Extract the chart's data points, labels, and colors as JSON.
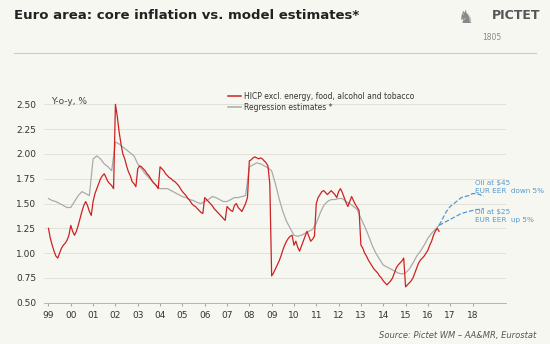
{
  "title": "Euro area: core inflation vs. model estimates*",
  "ylabel": "Y-o-y, %",
  "source": "Source: Pictet WM – AA&MR, Eurostat",
  "legend_red": "HICP excl. energy, food, alcohol and tobacco",
  "legend_gray": "Regression estimates *",
  "annotation_upper": "Oil at $45\nEUR EER  down 5%",
  "annotation_lower": "Oil at $25\nEUR EER  up 5%",
  "ylim": [
    0.5,
    2.65
  ],
  "yticks": [
    0.5,
    0.75,
    1.0,
    1.25,
    1.5,
    1.75,
    2.0,
    2.25,
    2.5
  ],
  "background_color": "#f7f7f2",
  "red_color": "#cc2222",
  "gray_color": "#aaaaaa",
  "blue_color": "#5599cc",
  "title_color": "#222222",
  "text_color": "#444444",
  "hicp_x": [
    1999.0,
    1999.083,
    1999.167,
    1999.25,
    1999.333,
    1999.417,
    1999.5,
    1999.583,
    1999.667,
    1999.75,
    1999.833,
    1999.917,
    2000.0,
    2000.083,
    2000.167,
    2000.25,
    2000.333,
    2000.417,
    2000.5,
    2000.583,
    2000.667,
    2000.75,
    2000.833,
    2000.917,
    2001.0,
    2001.083,
    2001.167,
    2001.25,
    2001.333,
    2001.417,
    2001.5,
    2001.583,
    2001.667,
    2001.75,
    2001.833,
    2001.917,
    2002.0,
    2002.083,
    2002.167,
    2002.25,
    2002.333,
    2002.417,
    2002.5,
    2002.583,
    2002.667,
    2002.75,
    2002.833,
    2002.917,
    2003.0,
    2003.083,
    2003.167,
    2003.25,
    2003.333,
    2003.417,
    2003.5,
    2003.583,
    2003.667,
    2003.75,
    2003.833,
    2003.917,
    2004.0,
    2004.083,
    2004.167,
    2004.25,
    2004.333,
    2004.417,
    2004.5,
    2004.583,
    2004.667,
    2004.75,
    2004.833,
    2004.917,
    2005.0,
    2005.083,
    2005.167,
    2005.25,
    2005.333,
    2005.417,
    2005.5,
    2005.583,
    2005.667,
    2005.75,
    2005.833,
    2005.917,
    2006.0,
    2006.083,
    2006.167,
    2006.25,
    2006.333,
    2006.417,
    2006.5,
    2006.583,
    2006.667,
    2006.75,
    2006.833,
    2006.917,
    2007.0,
    2007.083,
    2007.167,
    2007.25,
    2007.333,
    2007.417,
    2007.5,
    2007.583,
    2007.667,
    2007.75,
    2007.833,
    2007.917,
    2008.0,
    2008.083,
    2008.167,
    2008.25,
    2008.333,
    2008.417,
    2008.5,
    2008.583,
    2008.667,
    2008.75,
    2008.833,
    2008.917,
    2009.0,
    2009.083,
    2009.167,
    2009.25,
    2009.333,
    2009.417,
    2009.5,
    2009.583,
    2009.667,
    2009.75,
    2009.833,
    2009.917,
    2010.0,
    2010.083,
    2010.167,
    2010.25,
    2010.333,
    2010.417,
    2010.5,
    2010.583,
    2010.667,
    2010.75,
    2010.833,
    2010.917,
    2011.0,
    2011.083,
    2011.167,
    2011.25,
    2011.333,
    2011.417,
    2011.5,
    2011.583,
    2011.667,
    2011.75,
    2011.833,
    2011.917,
    2012.0,
    2012.083,
    2012.167,
    2012.25,
    2012.333,
    2012.417,
    2012.5,
    2012.583,
    2012.667,
    2012.75,
    2012.833,
    2012.917,
    2013.0,
    2013.083,
    2013.167,
    2013.25,
    2013.333,
    2013.417,
    2013.5,
    2013.583,
    2013.667,
    2013.75,
    2013.833,
    2013.917,
    2014.0,
    2014.083,
    2014.167,
    2014.25,
    2014.333,
    2014.417,
    2014.5,
    2014.583,
    2014.667,
    2014.75,
    2014.833,
    2014.917,
    2015.0,
    2015.083,
    2015.167,
    2015.25,
    2015.333,
    2015.417,
    2015.5,
    2015.583,
    2015.667,
    2015.75,
    2015.833,
    2015.917,
    2016.0,
    2016.083,
    2016.167,
    2016.25,
    2016.333,
    2016.417,
    2016.5
  ],
  "hicp_y": [
    1.25,
    1.15,
    1.08,
    1.02,
    0.97,
    0.95,
    1.0,
    1.05,
    1.08,
    1.1,
    1.13,
    1.18,
    1.28,
    1.22,
    1.18,
    1.22,
    1.28,
    1.35,
    1.42,
    1.48,
    1.52,
    1.48,
    1.42,
    1.38,
    1.52,
    1.6,
    1.65,
    1.7,
    1.75,
    1.78,
    1.8,
    1.76,
    1.72,
    1.7,
    1.68,
    1.65,
    2.5,
    2.38,
    2.22,
    2.1,
    2.0,
    1.95,
    1.88,
    1.82,
    1.78,
    1.72,
    1.7,
    1.67,
    1.85,
    1.88,
    1.87,
    1.85,
    1.83,
    1.8,
    1.78,
    1.75,
    1.72,
    1.7,
    1.68,
    1.65,
    1.87,
    1.85,
    1.83,
    1.8,
    1.78,
    1.76,
    1.75,
    1.73,
    1.72,
    1.7,
    1.68,
    1.65,
    1.62,
    1.6,
    1.58,
    1.55,
    1.53,
    1.5,
    1.48,
    1.47,
    1.45,
    1.43,
    1.41,
    1.4,
    1.56,
    1.54,
    1.52,
    1.5,
    1.48,
    1.45,
    1.43,
    1.41,
    1.39,
    1.37,
    1.35,
    1.33,
    1.47,
    1.45,
    1.43,
    1.42,
    1.48,
    1.5,
    1.46,
    1.44,
    1.42,
    1.46,
    1.5,
    1.56,
    1.93,
    1.94,
    1.96,
    1.97,
    1.96,
    1.95,
    1.96,
    1.95,
    1.93,
    1.91,
    1.88,
    1.7,
    0.77,
    0.8,
    0.84,
    0.88,
    0.92,
    0.97,
    1.03,
    1.08,
    1.12,
    1.15,
    1.17,
    1.18,
    1.08,
    1.12,
    1.06,
    1.02,
    1.07,
    1.12,
    1.17,
    1.22,
    1.17,
    1.12,
    1.14,
    1.17,
    1.5,
    1.56,
    1.59,
    1.62,
    1.63,
    1.61,
    1.59,
    1.61,
    1.63,
    1.61,
    1.59,
    1.56,
    1.62,
    1.65,
    1.61,
    1.56,
    1.51,
    1.47,
    1.52,
    1.57,
    1.53,
    1.49,
    1.46,
    1.43,
    1.08,
    1.05,
    1.0,
    0.97,
    0.93,
    0.9,
    0.87,
    0.84,
    0.82,
    0.8,
    0.77,
    0.75,
    0.72,
    0.7,
    0.68,
    0.7,
    0.72,
    0.75,
    0.8,
    0.85,
    0.88,
    0.9,
    0.92,
    0.95,
    0.66,
    0.68,
    0.7,
    0.72,
    0.75,
    0.8,
    0.85,
    0.9,
    0.93,
    0.95,
    0.97,
    1.0,
    1.03,
    1.08,
    1.12,
    1.18,
    1.22,
    1.25,
    1.22
  ],
  "reg_x": [
    1999.0,
    1999.167,
    1999.333,
    1999.5,
    1999.667,
    1999.833,
    2000.0,
    2000.167,
    2000.333,
    2000.5,
    2000.667,
    2000.833,
    2001.0,
    2001.167,
    2001.333,
    2001.5,
    2001.667,
    2001.833,
    2002.0,
    2002.167,
    2002.333,
    2002.5,
    2002.667,
    2002.833,
    2003.0,
    2003.167,
    2003.333,
    2003.5,
    2003.667,
    2003.833,
    2004.0,
    2004.167,
    2004.333,
    2004.5,
    2004.667,
    2004.833,
    2005.0,
    2005.167,
    2005.333,
    2005.5,
    2005.667,
    2005.833,
    2006.0,
    2006.167,
    2006.333,
    2006.5,
    2006.667,
    2006.833,
    2007.0,
    2007.167,
    2007.333,
    2007.5,
    2007.667,
    2007.833,
    2008.0,
    2008.167,
    2008.333,
    2008.5,
    2008.667,
    2008.833,
    2009.0,
    2009.167,
    2009.333,
    2009.5,
    2009.667,
    2009.833,
    2010.0,
    2010.167,
    2010.333,
    2010.5,
    2010.667,
    2010.833,
    2011.0,
    2011.167,
    2011.333,
    2011.5,
    2011.667,
    2011.833,
    2012.0,
    2012.167,
    2012.333,
    2012.5,
    2012.667,
    2012.833,
    2013.0,
    2013.167,
    2013.333,
    2013.5,
    2013.667,
    2013.833,
    2014.0,
    2014.167,
    2014.333,
    2014.5,
    2014.667,
    2014.833,
    2015.0,
    2015.167,
    2015.333,
    2015.5,
    2015.667,
    2015.833,
    2016.0,
    2016.167,
    2016.333,
    2016.5
  ],
  "reg_y": [
    1.55,
    1.53,
    1.52,
    1.5,
    1.48,
    1.46,
    1.46,
    1.52,
    1.58,
    1.62,
    1.6,
    1.58,
    1.95,
    1.98,
    1.95,
    1.9,
    1.87,
    1.83,
    2.12,
    2.1,
    2.07,
    2.04,
    2.01,
    1.98,
    1.9,
    1.85,
    1.8,
    1.76,
    1.72,
    1.68,
    1.65,
    1.65,
    1.65,
    1.63,
    1.61,
    1.59,
    1.57,
    1.56,
    1.54,
    1.53,
    1.51,
    1.5,
    1.52,
    1.54,
    1.57,
    1.56,
    1.54,
    1.52,
    1.52,
    1.54,
    1.56,
    1.56,
    1.57,
    1.58,
    1.87,
    1.89,
    1.91,
    1.9,
    1.88,
    1.86,
    1.83,
    1.7,
    1.55,
    1.42,
    1.32,
    1.25,
    1.18,
    1.17,
    1.18,
    1.2,
    1.22,
    1.24,
    1.3,
    1.4,
    1.48,
    1.52,
    1.54,
    1.54,
    1.55,
    1.55,
    1.52,
    1.5,
    1.47,
    1.44,
    1.35,
    1.27,
    1.18,
    1.08,
    1.0,
    0.94,
    0.88,
    0.86,
    0.84,
    0.82,
    0.8,
    0.79,
    0.8,
    0.84,
    0.9,
    0.97,
    1.02,
    1.08,
    1.15,
    1.2,
    1.24,
    1.28
  ],
  "forecast_upper_x": [
    2016.5,
    2016.667,
    2016.833,
    2017.0,
    2017.167,
    2017.333,
    2017.5,
    2017.667,
    2017.833,
    2018.0,
    2018.167,
    2018.333,
    2018.5
  ],
  "forecast_upper_y": [
    1.28,
    1.35,
    1.42,
    1.47,
    1.5,
    1.53,
    1.56,
    1.57,
    1.58,
    1.6,
    1.6,
    1.59,
    1.57
  ],
  "forecast_lower_x": [
    2016.5,
    2016.667,
    2016.833,
    2017.0,
    2017.167,
    2017.333,
    2017.5,
    2017.667,
    2017.833,
    2018.0,
    2018.167,
    2018.333,
    2018.5
  ],
  "forecast_lower_y": [
    1.28,
    1.3,
    1.32,
    1.34,
    1.36,
    1.38,
    1.4,
    1.41,
    1.42,
    1.43,
    1.44,
    1.44,
    1.45
  ],
  "ann_upper_x": 2018.1,
  "ann_upper_y": 1.67,
  "ann_lower_x": 2018.1,
  "ann_lower_y": 1.37,
  "xtick_positions": [
    1999,
    2000,
    2001,
    2002,
    2003,
    2004,
    2005,
    2006,
    2007,
    2008,
    2009,
    2010,
    2011,
    2012,
    2013,
    2014,
    2015,
    2016,
    2017,
    2018
  ],
  "xtick_labels": [
    "99",
    "00",
    "01",
    "02",
    "03",
    "04",
    "05",
    "06",
    "07",
    "08",
    "09",
    "10",
    "11",
    "12",
    "13",
    "14",
    "15",
    "16",
    "17",
    "18"
  ]
}
